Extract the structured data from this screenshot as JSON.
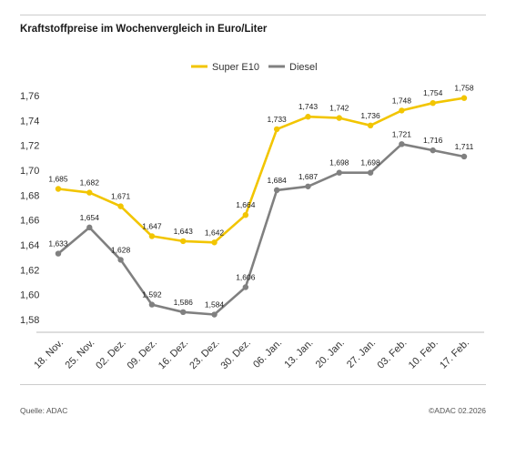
{
  "title": "Kraftstoffpreise im Wochenvergleich in Euro/Liter",
  "footer": {
    "source": "Quelle: ADAC",
    "copyright": "©ADAC 02.2026"
  },
  "colors": {
    "super_e10": "#f2c500",
    "diesel": "#808080"
  },
  "chart_data": {
    "type": "line",
    "title": "Kraftstoffpreise im Wochenvergleich in Euro/Liter",
    "xlabel": "",
    "ylabel": "",
    "categories": [
      "18. Nov.",
      "25. Nov.",
      "02. Dez.",
      "09. Dez.",
      "16. Dez.",
      "23. Dez.",
      "30. Dez.",
      "06. Jan.",
      "13. Jan.",
      "20. Jan.",
      "27. Jan.",
      "03. Feb.",
      "10. Feb.",
      "17. Feb."
    ],
    "ylim": [
      1.58,
      1.76
    ],
    "yticks": [
      "1,58",
      "1,60",
      "1,62",
      "1,64",
      "1,66",
      "1,68",
      "1,70",
      "1,72",
      "1,74",
      "1,76"
    ],
    "grid": false,
    "legend": "top-center",
    "series": [
      {
        "name": "Super E10",
        "color": "#f2c500",
        "values": [
          1.685,
          1.682,
          1.671,
          1.647,
          1.643,
          1.642,
          1.664,
          1.733,
          1.743,
          1.742,
          1.736,
          1.748,
          1.754,
          1.758
        ],
        "labels": [
          "1,685",
          "1,682",
          "1,671",
          "1,647",
          "1,643",
          "1,642",
          "1,664",
          "1,733",
          "1,743",
          "1,742",
          "1,736",
          "1,748",
          "1,754",
          "1,758"
        ]
      },
      {
        "name": "Diesel",
        "color": "#808080",
        "values": [
          1.633,
          1.654,
          1.628,
          1.592,
          1.586,
          1.584,
          1.606,
          1.684,
          1.687,
          1.698,
          1.698,
          1.721,
          1.716,
          1.711
        ],
        "labels": [
          "1,633",
          "1,654",
          "1,628",
          "1,592",
          "1,586",
          "1,584",
          "1,606",
          "1,684",
          "1,687",
          "1,698",
          "1,698",
          "1,721",
          "1,716",
          "1,711"
        ]
      }
    ]
  }
}
